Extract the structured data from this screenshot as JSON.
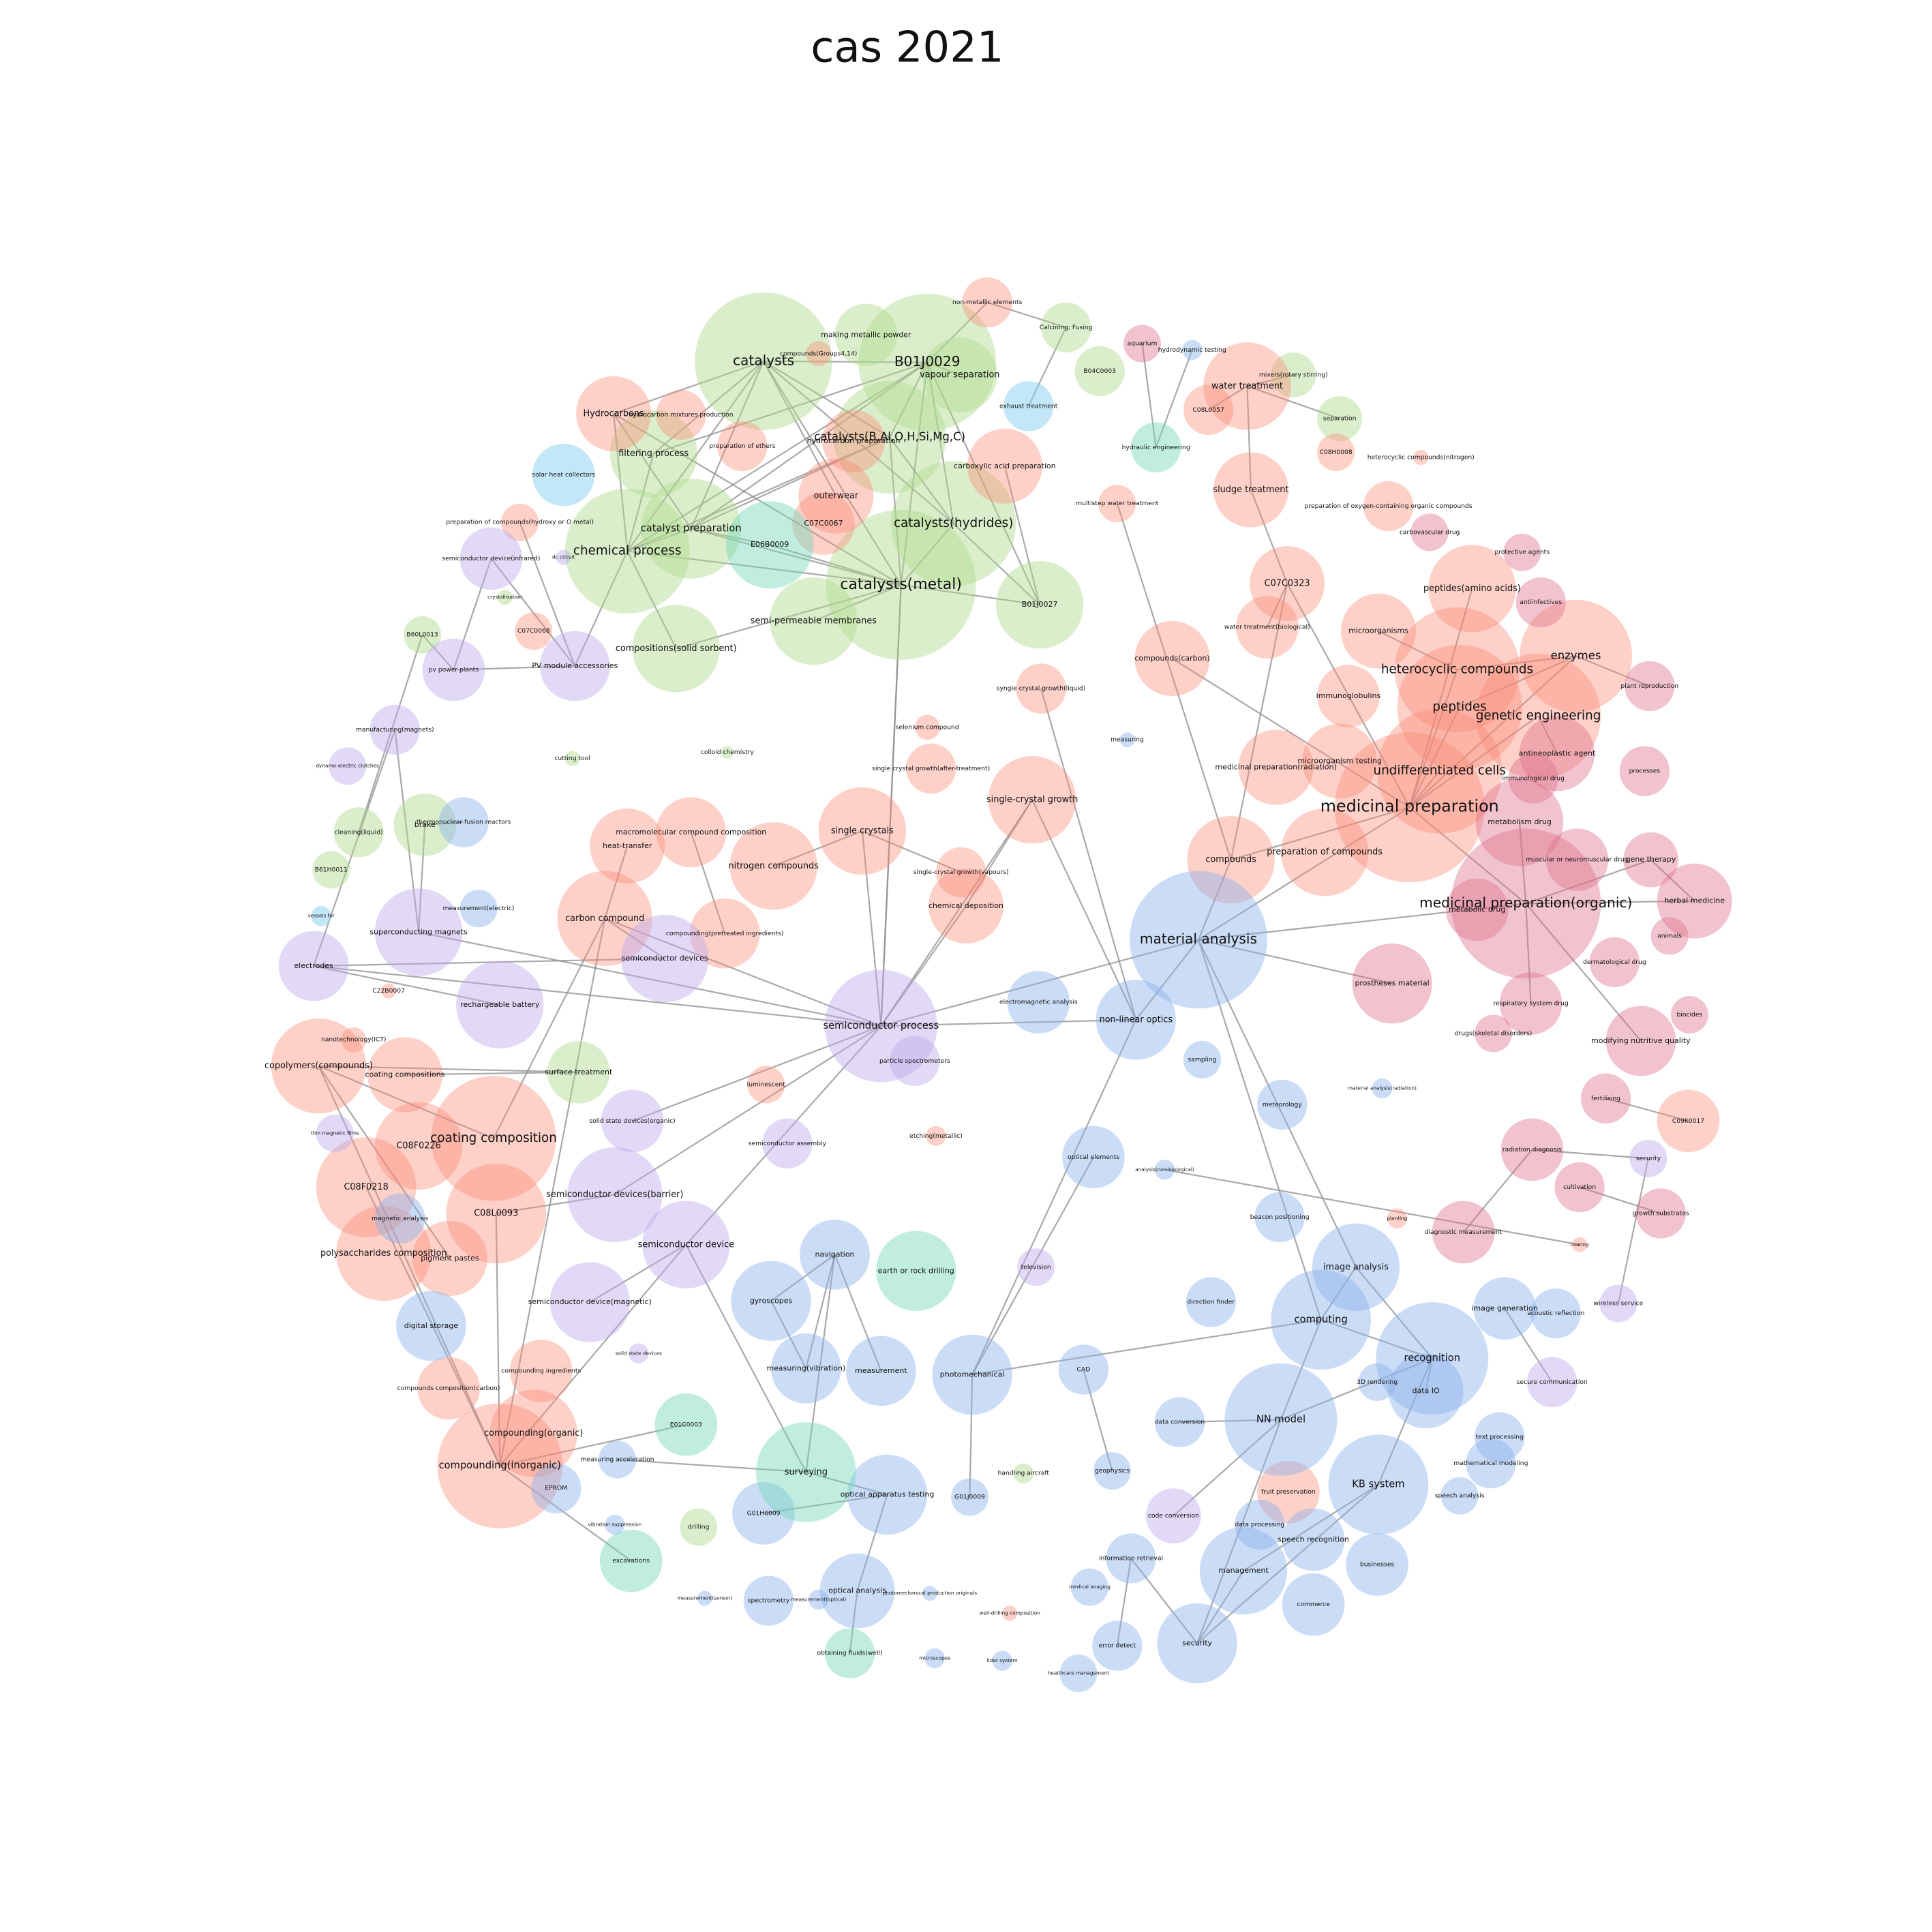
{
  "title": "cas 2021",
  "nodes": [
    {
      "label": "catalysts"
    },
    {
      "label": "making metallic powder"
    },
    {
      "label": "B01J0029"
    },
    {
      "label": "vapour separation"
    },
    {
      "label": "Calcining; Fusing"
    },
    {
      "label": "B04C0003"
    },
    {
      "label": "mixers(rotary stirring)"
    },
    {
      "label": "separation"
    },
    {
      "label": "catalysts(B,Al,O,H,Si,Mg,C)"
    },
    {
      "label": "filtering process"
    },
    {
      "label": "catalyst preparation"
    },
    {
      "label": "chemical process"
    },
    {
      "label": "catalysts(hydrides)"
    },
    {
      "label": "catalysts(metal)"
    },
    {
      "label": "semi-permeable membranes"
    },
    {
      "label": "compositions(solid sorbent)"
    },
    {
      "label": "B01J0027"
    },
    {
      "label": "B60L0013"
    },
    {
      "label": "cleaning(liquid)"
    },
    {
      "label": "brake"
    },
    {
      "label": "B61H0011"
    },
    {
      "label": "surface treatment"
    },
    {
      "label": "drilling"
    },
    {
      "label": "handling aircraft"
    },
    {
      "label": "cutting tool"
    },
    {
      "label": "colloid chemistry"
    },
    {
      "label": "crystallisation"
    },
    {
      "label": "non-metallic elements"
    },
    {
      "label": "Hydrocarbons"
    },
    {
      "label": "hydrocarbon mixtures production"
    },
    {
      "label": "compounds(Groups4,14)"
    },
    {
      "label": "preparation of ethers"
    },
    {
      "label": "hydrocarbon preparation"
    },
    {
      "label": "carboxylic acid preparation"
    },
    {
      "label": "outerwear"
    },
    {
      "label": "C07C0067"
    },
    {
      "label": "preparation of compounds(hydroxy or O metal)"
    },
    {
      "label": "C07C0068"
    },
    {
      "label": "water treatment"
    },
    {
      "label": "C08L0057"
    },
    {
      "label": "C08H0008"
    },
    {
      "label": "sludge treatment"
    },
    {
      "label": "multistep water treatment"
    },
    {
      "label": "heterocyclic compounds(nitrogen)"
    },
    {
      "label": "preparation of oxygen-containing organic compounds"
    },
    {
      "label": "C07C0323"
    },
    {
      "label": "water treatment(biological)"
    },
    {
      "label": "compounds(carbon)"
    },
    {
      "label": "microorganisms"
    },
    {
      "label": "peptides(amino acids)"
    },
    {
      "label": "enzymes"
    },
    {
      "label": "heterocyclic compounds"
    },
    {
      "label": "immunoglobulins"
    },
    {
      "label": "peptides"
    },
    {
      "label": "genetic engineering"
    },
    {
      "label": "syngle crystal growth(liquid)"
    },
    {
      "label": "selenium compound"
    },
    {
      "label": "single crystal growth(after-treatment)"
    },
    {
      "label": "single-crystal growth"
    },
    {
      "label": "single crystals"
    },
    {
      "label": "macromolecular compound composition"
    },
    {
      "label": "heat-transfer"
    },
    {
      "label": "nitrogen compounds"
    },
    {
      "label": "single-crystal growth(vapours)"
    },
    {
      "label": "carbon compound"
    },
    {
      "label": "compounding(pretreated ingredients)"
    },
    {
      "label": "chemical deposition"
    },
    {
      "label": "microorganism testing"
    },
    {
      "label": "medicinal preparation(radiation)"
    },
    {
      "label": "undifferentiated cells"
    },
    {
      "label": "medicinal preparation"
    },
    {
      "label": "compounds"
    },
    {
      "label": "preparation of compounds"
    },
    {
      "label": "nanotechnology(ICT)"
    },
    {
      "label": "C22B0007"
    },
    {
      "label": "copolymers(compounds)"
    },
    {
      "label": "coating compositions"
    },
    {
      "label": "luminescent"
    },
    {
      "label": "coating composition"
    },
    {
      "label": "C08F0226"
    },
    {
      "label": "C08F0218"
    },
    {
      "label": "C08L0093"
    },
    {
      "label": "polysaccharides composition"
    },
    {
      "label": "pigment pastes"
    },
    {
      "label": "etching(metallic)"
    },
    {
      "label": "compounding ingredients"
    },
    {
      "label": "compounds composition(carbon)"
    },
    {
      "label": "compounding(organic)"
    },
    {
      "label": "compounding(inorganic)"
    },
    {
      "label": "C09K0017"
    },
    {
      "label": "planting"
    },
    {
      "label": "coating"
    },
    {
      "label": "well-drilling composition"
    },
    {
      "label": "fruit preservation"
    },
    {
      "label": "aquarium"
    },
    {
      "label": "protective agents"
    },
    {
      "label": "carbovascular drug"
    },
    {
      "label": "antiinfectives"
    },
    {
      "label": "plant reproduction"
    },
    {
      "label": "antineoplastic agent"
    },
    {
      "label": "processes"
    },
    {
      "label": "immunological drug"
    },
    {
      "label": "metabolism drug"
    },
    {
      "label": "muscular or neuromuscular drug"
    },
    {
      "label": "gene therapy"
    },
    {
      "label": "medicinal preparation(organic)"
    },
    {
      "label": "herbal medicine"
    },
    {
      "label": "metabolic drug"
    },
    {
      "label": "animals"
    },
    {
      "label": "dermatological drug"
    },
    {
      "label": "prostheses material"
    },
    {
      "label": "respiratory system drug"
    },
    {
      "label": "biocides"
    },
    {
      "label": "drugs(skeletal disorders)"
    },
    {
      "label": "modifying nutritive quality"
    },
    {
      "label": "fertilising"
    },
    {
      "label": "radiation diagnosis"
    },
    {
      "label": "cultivation"
    },
    {
      "label": "growth substrates"
    },
    {
      "label": "diagnostic measurement"
    },
    {
      "label": "hydrodynamic testing"
    },
    {
      "label": "measuring"
    },
    {
      "label": "thermonuclear fusion reactors"
    },
    {
      "label": "measurement(electric)"
    },
    {
      "label": "material analysis"
    },
    {
      "label": "electromagnetic analysis"
    },
    {
      "label": "non-linear optics"
    },
    {
      "label": "sampling"
    },
    {
      "label": "meteorology"
    },
    {
      "label": "material analysis(radiation)"
    },
    {
      "label": "optical elements"
    },
    {
      "label": "analysis(non-biological)"
    },
    {
      "label": "beacon positioning"
    },
    {
      "label": "image analysis"
    },
    {
      "label": "direction finder"
    },
    {
      "label": "computing"
    },
    {
      "label": "image generation"
    },
    {
      "label": "acoustic reflection"
    },
    {
      "label": "recognition"
    },
    {
      "label": "3D rendering"
    },
    {
      "label": "data IO"
    },
    {
      "label": "navigation"
    },
    {
      "label": "gyroscopes"
    },
    {
      "label": "measuring(vibration)"
    },
    {
      "label": "measurement"
    },
    {
      "label": "photomechanical"
    },
    {
      "label": "CAD"
    },
    {
      "label": "data conversion"
    },
    {
      "label": "NN model"
    },
    {
      "label": "text processing"
    },
    {
      "label": "mathematical modeling"
    },
    {
      "label": "geophysics"
    },
    {
      "label": "KB system"
    },
    {
      "label": "speech analysis"
    },
    {
      "label": "digital storage"
    },
    {
      "label": "magnetic analysis"
    },
    {
      "label": "optical apparatus testing"
    },
    {
      "label": "G01J0009"
    },
    {
      "label": "G01H0009"
    },
    {
      "label": "measuring acceleration"
    },
    {
      "label": "EPROM"
    },
    {
      "label": "vibration suppression"
    },
    {
      "label": "data processing"
    },
    {
      "label": "speech recognition"
    },
    {
      "label": "businesses"
    },
    {
      "label": "information retrieval"
    },
    {
      "label": "management"
    },
    {
      "label": "medical imaging"
    },
    {
      "label": "commerce"
    },
    {
      "label": "measurement(sensor)"
    },
    {
      "label": "spectrometry"
    },
    {
      "label": "measurement(optical)"
    },
    {
      "label": "optical analysis"
    },
    {
      "label": "photomechanical production originals"
    },
    {
      "label": "error detect"
    },
    {
      "label": "security"
    },
    {
      "label": "microscopes"
    },
    {
      "label": "lidar system"
    },
    {
      "label": "healthcare management"
    },
    {
      "label": "semiconductor device(infrared)"
    },
    {
      "label": "dc circuit"
    },
    {
      "label": "pv power plants"
    },
    {
      "label": "PV module accessories"
    },
    {
      "label": "manufacturing(magnets)"
    },
    {
      "label": "dynamo-electric clutches"
    },
    {
      "label": "superconducting magnets"
    },
    {
      "label": "electrodes"
    },
    {
      "label": "semiconductor devices"
    },
    {
      "label": "rechargeable battery"
    },
    {
      "label": "semiconductor process"
    },
    {
      "label": "particle spectrometers"
    },
    {
      "label": "thin magnetic films"
    },
    {
      "label": "solid state devices(organic)"
    },
    {
      "label": "semiconductor assembly"
    },
    {
      "label": "semiconductor devices(barrier)"
    },
    {
      "label": "semiconductor device"
    },
    {
      "label": "semiconductor device(magnetic)"
    },
    {
      "label": "television"
    },
    {
      "label": "solid state devices"
    },
    {
      "label": "code conversion"
    },
    {
      "label": "security"
    },
    {
      "label": "wireless service"
    },
    {
      "label": "secure communication"
    },
    {
      "label": "hydraulic engineering"
    },
    {
      "label": "E06B0009"
    },
    {
      "label": "earth or rock drilling"
    },
    {
      "label": "E01C0003"
    },
    {
      "label": "surveying"
    },
    {
      "label": "excavations"
    },
    {
      "label": "obtaining fluids(well)"
    },
    {
      "label": "solar heat collectors"
    },
    {
      "label": "exhaust treatment"
    },
    {
      "label": "vessels for"
    }
  ]
}
